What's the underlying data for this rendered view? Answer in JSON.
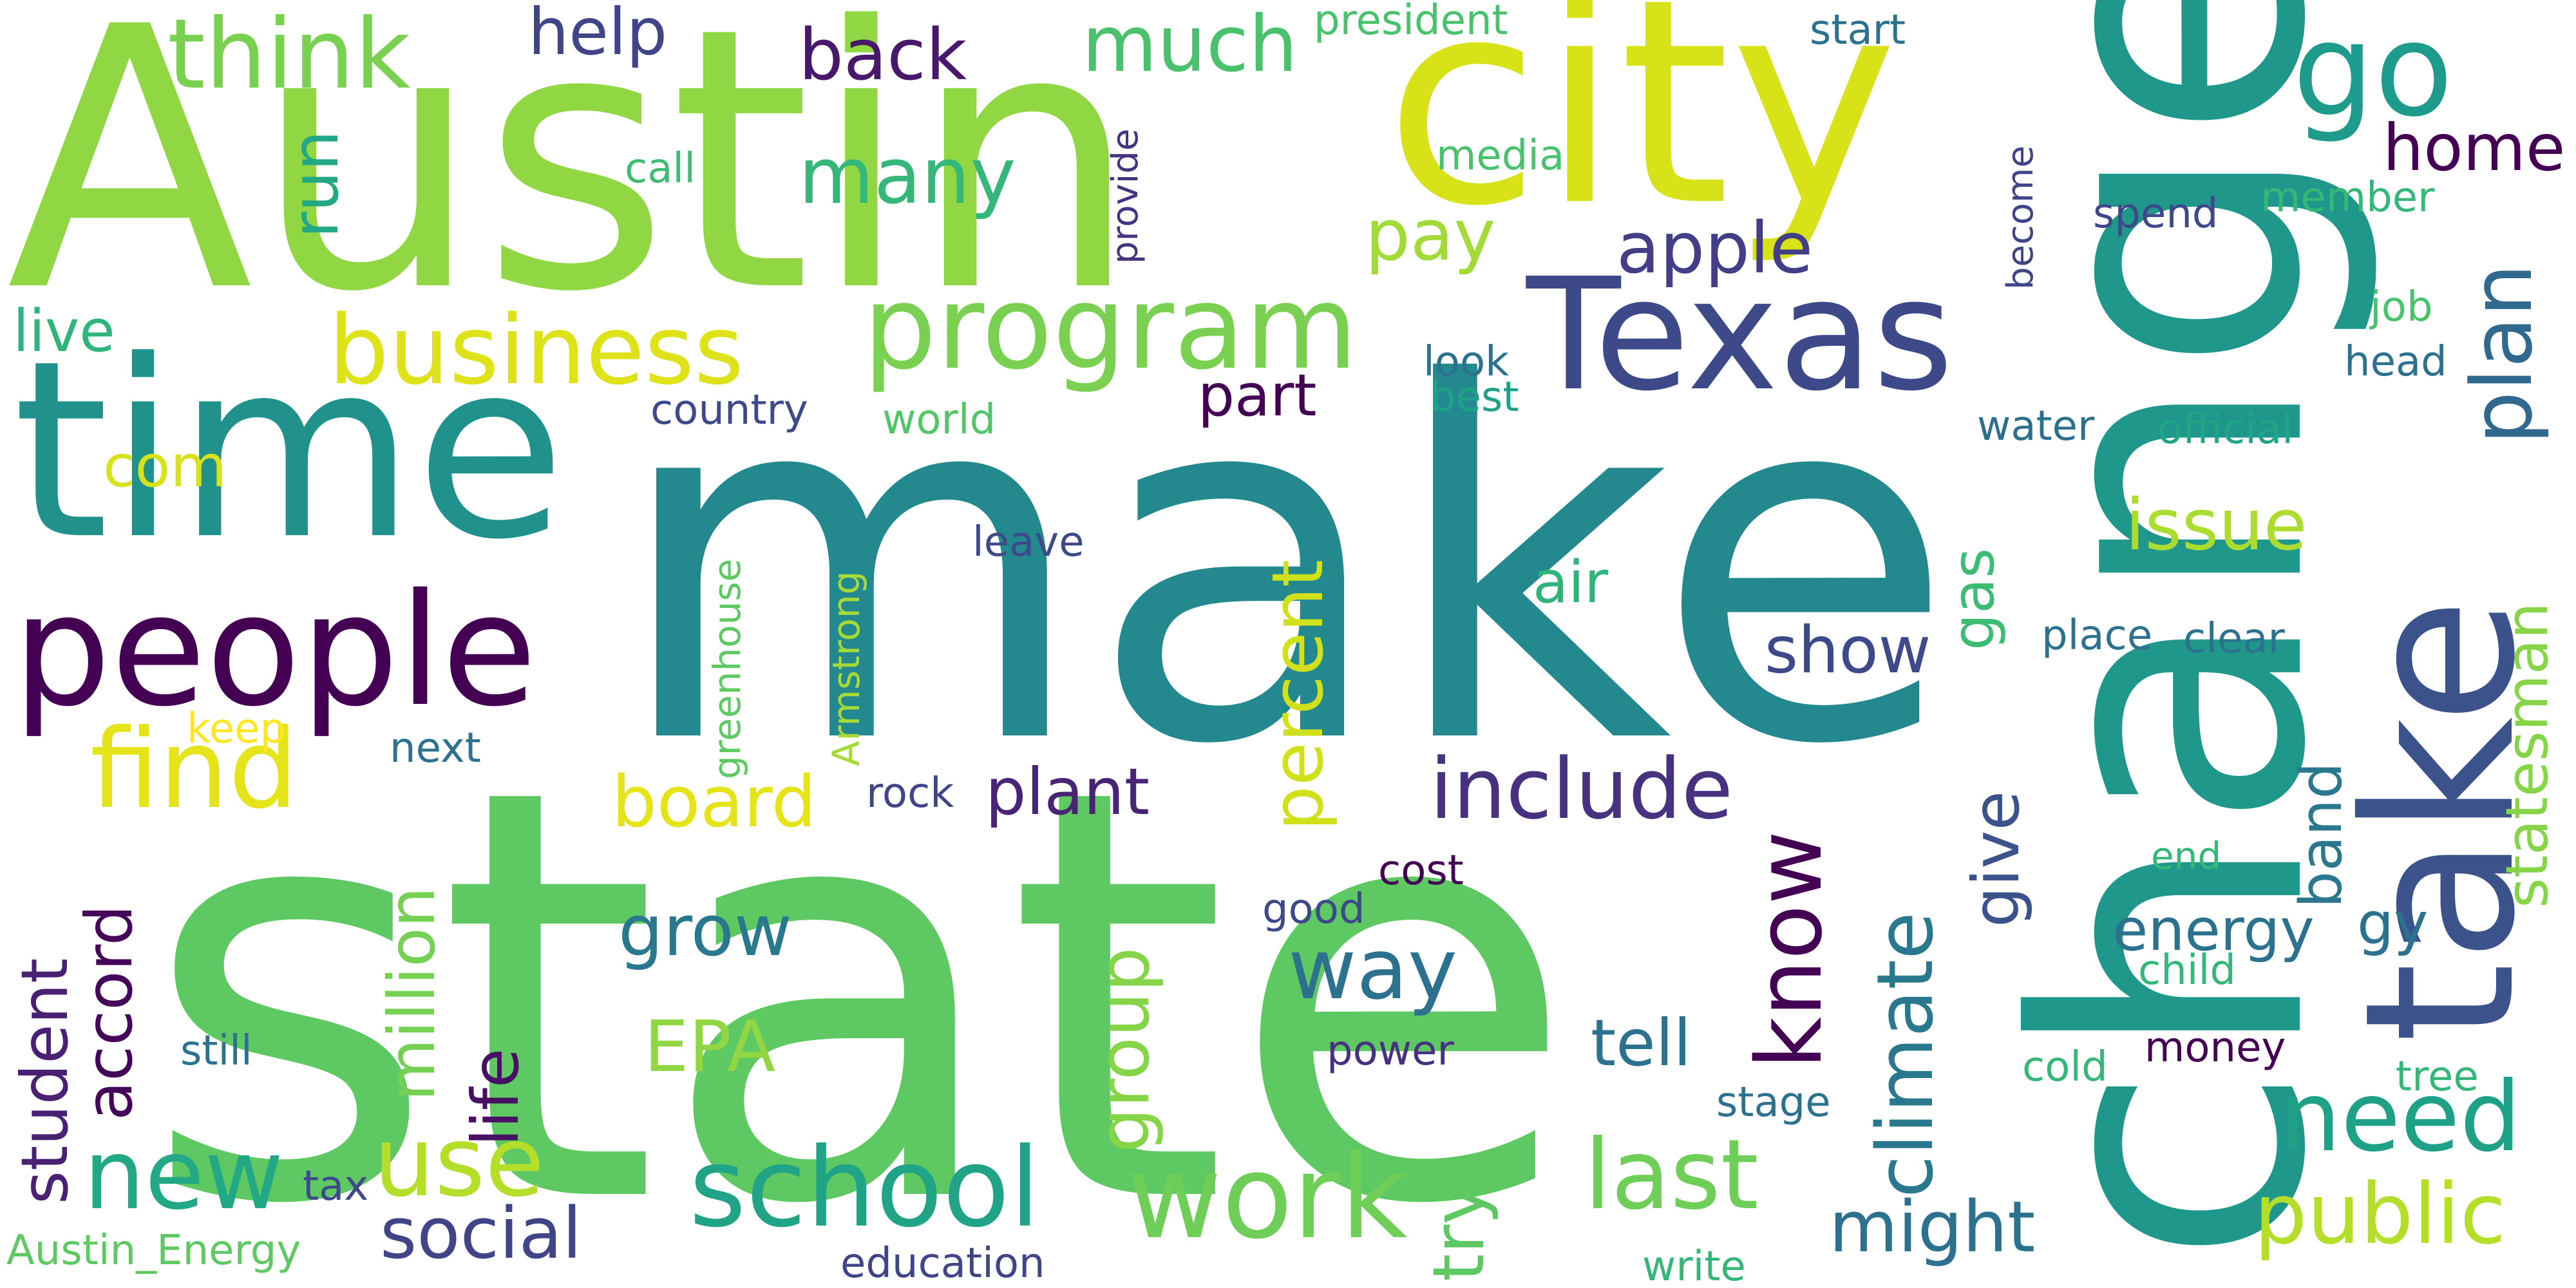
{
  "words": [
    {
      "text": "make",
      "color": "#23898e"
    },
    {
      "text": "state",
      "color": "#5ec962"
    },
    {
      "text": "Austin",
      "color": "#90d743"
    },
    {
      "text": "change",
      "color": "#1f988b"
    },
    {
      "text": "city",
      "color": "#d8e219"
    },
    {
      "text": "time",
      "color": "#21918c"
    },
    {
      "text": "take",
      "color": "#3b528b"
    },
    {
      "text": "Texas",
      "color": "#3e4989"
    },
    {
      "text": "people",
      "color": "#440154"
    },
    {
      "text": "program",
      "color": "#7ad151"
    },
    {
      "text": "business",
      "color": "#dde318"
    },
    {
      "text": "go",
      "color": "#1e9b8a"
    },
    {
      "text": "think",
      "color": "#7ad151"
    },
    {
      "text": "school",
      "color": "#20a386"
    },
    {
      "text": "work",
      "color": "#6ece58"
    },
    {
      "text": "find",
      "color": "#e5e419"
    },
    {
      "text": "new",
      "color": "#22a884"
    },
    {
      "text": "use",
      "color": "#b5de2b"
    },
    {
      "text": "last",
      "color": "#6ece58"
    },
    {
      "text": "public",
      "color": "#b5de2b"
    },
    {
      "text": "need",
      "color": "#1fa187"
    },
    {
      "text": "include",
      "color": "#46327e"
    },
    {
      "text": "know",
      "color": "#440154"
    },
    {
      "text": "climate",
      "color": "#2a788e"
    },
    {
      "text": "many",
      "color": "#35b779"
    },
    {
      "text": "much",
      "color": "#4ac16d"
    },
    {
      "text": "back",
      "color": "#48186a"
    },
    {
      "text": "apple",
      "color": "#433e85"
    },
    {
      "text": "home",
      "color": "#440154"
    },
    {
      "text": "plan",
      "color": "#31688e"
    },
    {
      "text": "board",
      "color": "#e5e419"
    },
    {
      "text": "grow",
      "color": "#2a788e"
    },
    {
      "text": "way",
      "color": "#2c728e"
    },
    {
      "text": "social",
      "color": "#414487"
    },
    {
      "text": "might",
      "color": "#2c728e"
    },
    {
      "text": "help",
      "color": "#414487"
    },
    {
      "text": "issue",
      "color": "#addc30"
    },
    {
      "text": "percent",
      "color": "#d0e11c"
    },
    {
      "text": "million",
      "color": "#75d054"
    },
    {
      "text": "group",
      "color": "#86d549"
    },
    {
      "text": "try",
      "color": "#5ec962"
    },
    {
      "text": "student",
      "color": "#482173"
    },
    {
      "text": "accord",
      "color": "#450559"
    },
    {
      "text": "life",
      "color": "#471063"
    },
    {
      "text": "pay",
      "color": "#a2da37"
    },
    {
      "text": "run",
      "color": "#22a884"
    },
    {
      "text": "plant",
      "color": "#482475"
    },
    {
      "text": "EPA",
      "color": "#90d743"
    },
    {
      "text": "tell",
      "color": "#2c728e"
    },
    {
      "text": "energy",
      "color": "#2c728e"
    },
    {
      "text": "give",
      "color": "#3b528b"
    },
    {
      "text": "gas",
      "color": "#3dbc74"
    },
    {
      "text": "band",
      "color": "#2a788e"
    },
    {
      "text": "gy",
      "color": "#2c728e"
    },
    {
      "text": "statesman",
      "color": "#86d549"
    },
    {
      "text": "show",
      "color": "#3e4989"
    },
    {
      "text": "air",
      "color": "#2fb47c"
    },
    {
      "text": "part",
      "color": "#440154"
    },
    {
      "text": "com",
      "color": "#d8e219"
    },
    {
      "text": "live",
      "color": "#2fb47c"
    },
    {
      "text": "country",
      "color": "#3e4989"
    },
    {
      "text": "world",
      "color": "#52c569"
    },
    {
      "text": "greenhouse",
      "color": "#5ec962"
    },
    {
      "text": "Armstrong",
      "color": "#a5db36"
    },
    {
      "text": "leave",
      "color": "#3e4989"
    },
    {
      "text": "look",
      "color": "#2c728e"
    },
    {
      "text": "best",
      "color": "#1fa187"
    },
    {
      "text": "water",
      "color": "#2d708e"
    },
    {
      "text": "official",
      "color": "#20a386"
    },
    {
      "text": "place",
      "color": "#2c728e"
    },
    {
      "text": "clear",
      "color": "#2c728e"
    },
    {
      "text": "spend",
      "color": "#3e4989"
    },
    {
      "text": "member",
      "color": "#35b779"
    },
    {
      "text": "job",
      "color": "#4ac16d"
    },
    {
      "text": "head",
      "color": "#2c728e"
    },
    {
      "text": "become",
      "color": "#414487"
    },
    {
      "text": "media",
      "color": "#4ac16d"
    },
    {
      "text": "call",
      "color": "#3dbc74"
    },
    {
      "text": "provide",
      "color": "#46337f"
    },
    {
      "text": "president",
      "color": "#4ac16d"
    },
    {
      "text": "start",
      "color": "#2c728e"
    },
    {
      "text": "keep",
      "color": "#fde725"
    },
    {
      "text": "next",
      "color": "#2c728e"
    },
    {
      "text": "rock",
      "color": "#414487"
    },
    {
      "text": "cost",
      "color": "#440154"
    },
    {
      "text": "good",
      "color": "#3e4989"
    },
    {
      "text": "power",
      "color": "#46327e"
    },
    {
      "text": "still",
      "color": "#2c728e"
    },
    {
      "text": "tax",
      "color": "#3e4989"
    },
    {
      "text": "Austin_Energy",
      "color": "#5ec962"
    },
    {
      "text": "education",
      "color": "#414487"
    },
    {
      "text": "write",
      "color": "#35b779"
    },
    {
      "text": "stage",
      "color": "#2c728e"
    },
    {
      "text": "cold",
      "color": "#35b779"
    },
    {
      "text": "money",
      "color": "#440154"
    },
    {
      "text": "tree",
      "color": "#35b779"
    },
    {
      "text": "end",
      "color": "#35b779"
    },
    {
      "text": "child",
      "color": "#35b779"
    }
  ]
}
